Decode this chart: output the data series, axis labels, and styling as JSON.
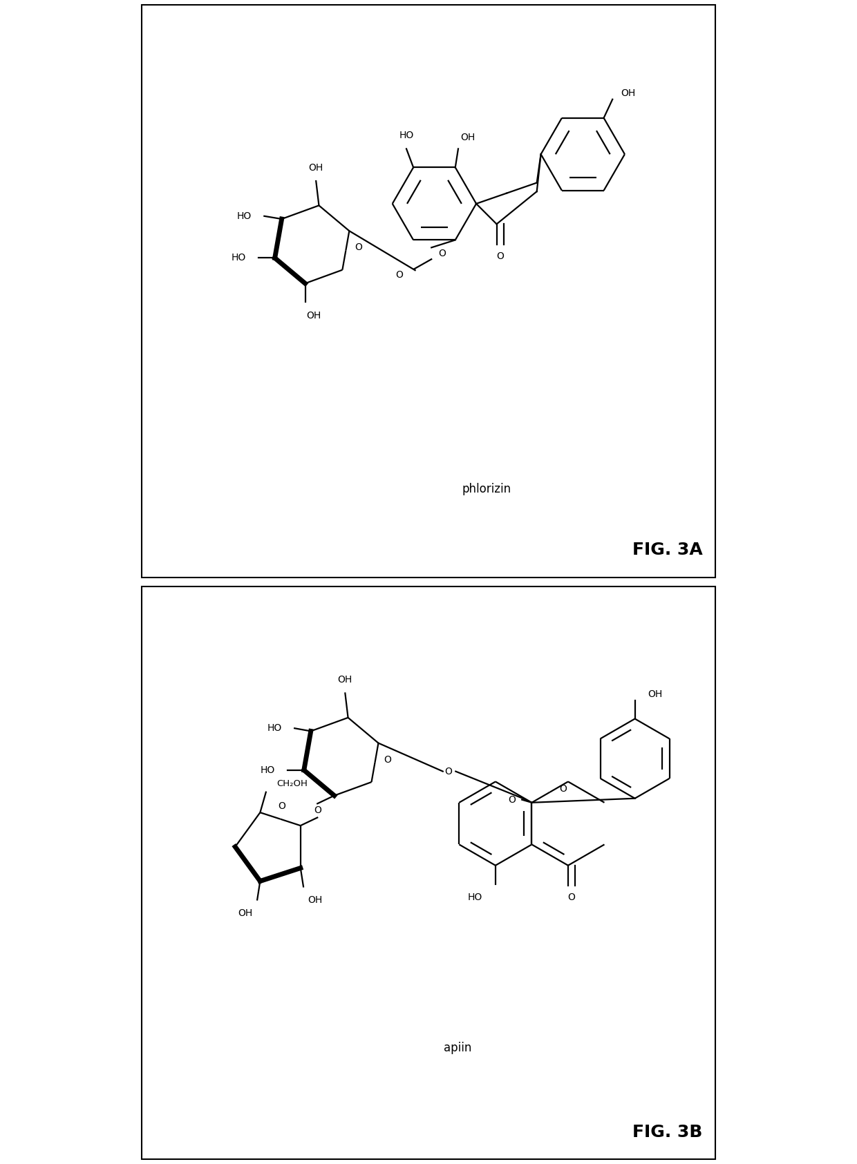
{
  "fig_width": 12.4,
  "fig_height": 16.85,
  "bg_color": "#ffffff",
  "border_color": "#000000",
  "compound_A_name": "phlorizin",
  "compound_B_name": "apiin",
  "panel_A_label": "FIG. 3A",
  "panel_B_label": "FIG. 3B",
  "lw": 1.6,
  "lw_bold": 5.0,
  "fs": 10.0,
  "fs_label": 12.0,
  "fs_fig": 18.0
}
